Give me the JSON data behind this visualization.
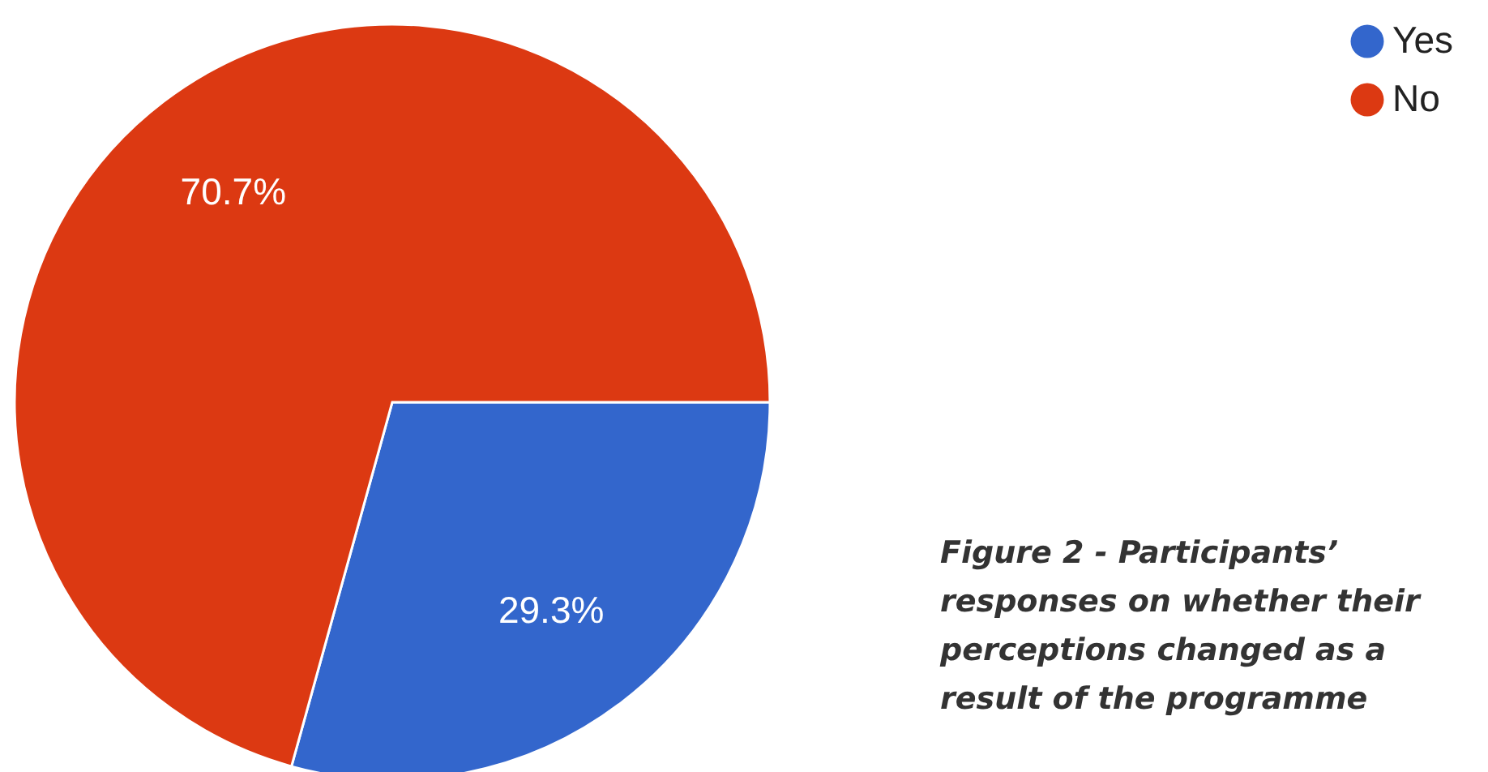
{
  "chart_data": {
    "type": "pie",
    "categories": [
      "Yes",
      "No"
    ],
    "values": [
      29.3,
      70.7
    ],
    "colors": [
      "#3366cc",
      "#dc3912"
    ],
    "value_labels": [
      "29.3%",
      "70.7%"
    ],
    "legend": "top right",
    "annotations": [
      "Figure 2 - Participants’ responses on whether their perceptions changed as a result of the programme"
    ]
  }
}
